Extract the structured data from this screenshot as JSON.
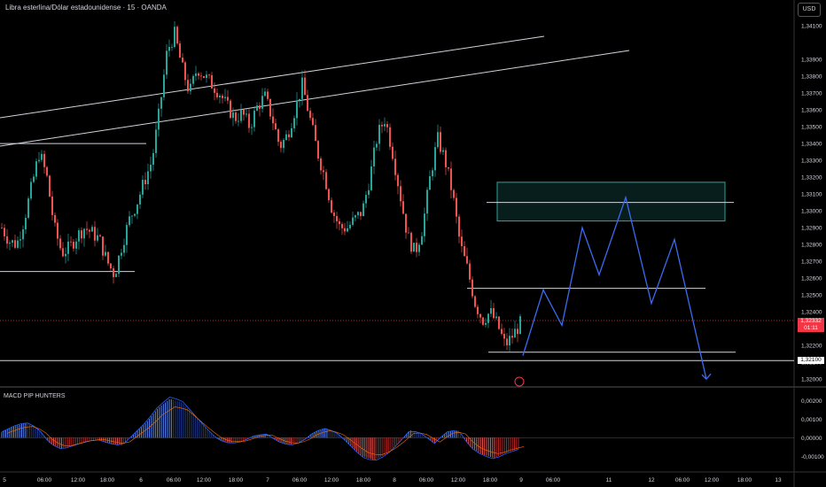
{
  "header": {
    "symbol_title": "Libra esterlina/Dólar estadounidense · 15 · OANDA",
    "currency_button": "USD"
  },
  "indicator": {
    "title": "MACD PIP HUNTERS"
  },
  "colors": {
    "background": "#000000",
    "up_candle": "#26a69a",
    "down_candle": "#ef5350",
    "projection": "#3d6bf0",
    "zone": "#26a69a",
    "current_price_tag": "#f23645",
    "level_tag": "#ffffff"
  },
  "tags": {
    "current_price": "1,32332",
    "countdown": "01:11",
    "level_price": "1,32100"
  },
  "chart_data": [
    {
      "type": "candlestick",
      "title": "Libra esterlina/Dólar estadounidense · 15 · OANDA",
      "y_axis_ticks": [
        "1,34100",
        "1,33900",
        "1,33800",
        "1,33700",
        "1,33600",
        "1,33500",
        "1,33400",
        "1,33300",
        "1,33200",
        "1,33100",
        "1,33000",
        "1,32900",
        "1,32800",
        "1,32700",
        "1,32600",
        "1,32500",
        "1,32400",
        "1,32300",
        "1,32200",
        "1,32100",
        "1,32000"
      ],
      "x_axis_ticks": [
        "5",
        "06:00",
        "12:00",
        "18:00",
        "6",
        "06:00",
        "12:00",
        "18:00",
        "7",
        "06:00",
        "12:00",
        "18:00",
        "8",
        "06:00",
        "12:00",
        "18:00",
        "9",
        "06:00",
        "11",
        "12",
        "06:00",
        "12:00",
        "18:00",
        "13"
      ],
      "ylim": [
        1.3198,
        1.3419
      ],
      "price_path": [
        1.329,
        1.3282,
        1.328,
        1.3295,
        1.3315,
        1.3335,
        1.332,
        1.329,
        1.3275,
        1.3278,
        1.3285,
        1.329,
        1.3287,
        1.3283,
        1.327,
        1.3262,
        1.328,
        1.3295,
        1.3305,
        1.3318,
        1.333,
        1.336,
        1.3395,
        1.3405,
        1.3385,
        1.337,
        1.3385,
        1.338,
        1.3375,
        1.337,
        1.3362,
        1.3355,
        1.3358,
        1.335,
        1.3362,
        1.3368,
        1.3355,
        1.3338,
        1.3345,
        1.336,
        1.3375,
        1.3355,
        1.3335,
        1.332,
        1.33,
        1.329,
        1.329,
        1.3295,
        1.33,
        1.332,
        1.3345,
        1.3355,
        1.3335,
        1.331,
        1.3285,
        1.3275,
        1.329,
        1.332,
        1.3343,
        1.333,
        1.331,
        1.328,
        1.3265,
        1.3245,
        1.3235,
        1.324,
        1.3232,
        1.322,
        1.3226,
        1.3233
      ],
      "trend_lines": [
        {
          "name": "upper-channel-1",
          "from": [
            1.3364,
            "start"
          ],
          "to": [
            1.3412,
            "mid"
          ]
        },
        {
          "name": "upper-channel-2",
          "from": [
            1.3345,
            "start"
          ],
          "to": [
            1.3393,
            "mid"
          ]
        }
      ],
      "horizontal_levels": [
        1.334,
        1.3264,
        1.3254,
        1.3216,
        1.3211
      ],
      "zone": {
        "top": 1.3317,
        "bottom": 1.3294,
        "midline": 1.3305
      },
      "projection_path": [
        1.3214,
        1.3253,
        1.3232,
        1.329,
        1.3262,
        1.3308,
        1.3245,
        1.3283,
        1.32
      ]
    },
    {
      "type": "histogram",
      "title": "MACD PIP HUNTERS",
      "y_axis_ticks": [
        "0,00200",
        "0,00100",
        "0,00000",
        "-0,00100"
      ],
      "ylim": [
        -0.0018,
        0.0026
      ],
      "series": [
        {
          "name": "histogram",
          "values": [
            0.0003,
            0.0006,
            0.0008,
            0.0005,
            -0.0003,
            -0.0006,
            -0.0004,
            -0.0002,
            -0.0001,
            -0.0003,
            -0.0004,
            0.0002,
            0.0008,
            0.0016,
            0.0021,
            0.0019,
            0.0012,
            0.0005,
            -0.0001,
            -0.0003,
            -0.0002,
            0.0001,
            0.0002,
            -0.0002,
            -0.0004,
            -0.0002,
            0.0003,
            0.0005,
            0.0002,
            -0.0004,
            -0.001,
            -0.0012,
            -0.0009,
            -0.0003,
            0.0004,
            0.0002,
            -0.0003,
            0.0003,
            0.0004,
            -0.0005,
            -0.0009,
            -0.0011,
            -0.0008,
            -0.0006
          ]
        }
      ]
    }
  ]
}
